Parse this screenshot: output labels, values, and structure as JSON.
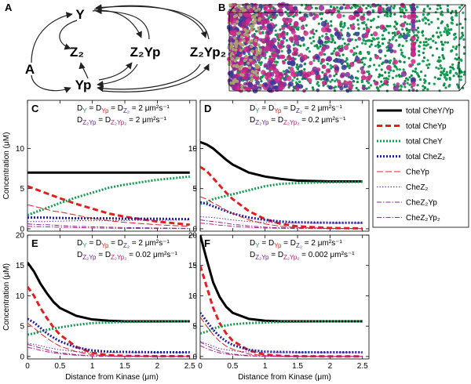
{
  "panel_labels": {
    "a": "A",
    "b": "B"
  },
  "diagram": {
    "nodes": [
      {
        "label": "Y",
        "color": "#1a9a55"
      },
      {
        "label": "Z₂",
        "color": "#2a3a9a"
      },
      {
        "label": "Z₂Yp",
        "color": "#6a2a8a"
      },
      {
        "label": "Z₂Yp₂",
        "color": "#c0207a"
      },
      {
        "label": "A",
        "color": "#b9b27a"
      },
      {
        "label": "Yp",
        "color": "#c8282d"
      }
    ]
  },
  "legend": [
    {
      "name": "total CheY/Yp",
      "color": "#000000",
      "width": 3,
      "dash": ""
    },
    {
      "name": "total CheYp",
      "color": "#e02020",
      "width": 3,
      "dash": "7 4"
    },
    {
      "name": "total CheY",
      "color": "#139a50",
      "width": 3,
      "dash": "2 2"
    },
    {
      "name": "total CheZ₂",
      "color": "#22229a",
      "width": 3,
      "dash": "2 2"
    },
    {
      "name": "CheYp",
      "color": "#e02020",
      "width": 1,
      "dash": "8 3"
    },
    {
      "name": "CheZ₂",
      "color": "#6a2a8a",
      "width": 1,
      "dash": "1.5 2"
    },
    {
      "name": "CheZ₂Yp",
      "color": "#7a2a9a",
      "width": 1,
      "dash": "6 2 1.5 2"
    },
    {
      "name": "CheZ₂Yp₂",
      "color": "#c0207a",
      "width": 1,
      "dash": "6 2 1.5 2"
    }
  ],
  "chart_data": [
    {
      "type": "line",
      "label": "C",
      "ylabel": "Concentration (μM)",
      "annotation": [
        [
          {
            "text": "D"
          },
          {
            "sub": "Y",
            "color": "#1a9a55"
          },
          {
            "text": " = D"
          },
          {
            "sub": "Yp",
            "color": "#e02020"
          },
          {
            "text": " = D"
          },
          {
            "sub": "Z₂",
            "color": "#2a3a9a"
          },
          {
            "text": " = 2 μm²s⁻¹"
          }
        ],
        [
          {
            "text": "D"
          },
          {
            "sub": "Z₂Yp",
            "color": "#6a2a8a"
          },
          {
            "text": " = D"
          },
          {
            "sub": "Z₂Yp₂",
            "color": "#c0207a"
          },
          {
            "text": " = 2 μm²s⁻¹"
          }
        ]
      ],
      "x": [
        0,
        0.1,
        0.2,
        0.3,
        0.4,
        0.5,
        0.75,
        1,
        1.25,
        1.5,
        2,
        2.5
      ],
      "xlim": [
        0,
        2.6
      ],
      "xticks": [
        0,
        0.5,
        1,
        1.5,
        2,
        2.5
      ],
      "xtick_labels": false,
      "ylim": [
        -0.3,
        16
      ],
      "yticks": [
        0,
        5,
        10
      ],
      "series": [
        {
          "values": [
            7,
            7,
            7,
            7,
            7,
            7,
            7,
            7,
            7,
            7,
            7,
            7
          ]
        },
        {
          "values": [
            5.3,
            5.0,
            4.7,
            4.4,
            4.1,
            3.8,
            3.1,
            2.5,
            1.9,
            1.5,
            0.9,
            0.5
          ]
        },
        {
          "values": [
            1.7,
            2.0,
            2.3,
            2.6,
            2.9,
            3.2,
            3.9,
            4.5,
            5.1,
            5.5,
            6.1,
            6.5
          ]
        },
        {
          "values": [
            1.4,
            1.4,
            1.4,
            1.4,
            1.35,
            1.35,
            1.3,
            1.3,
            1.3,
            1.25,
            1.25,
            1.2
          ]
        },
        {
          "values": [
            3.0,
            2.8,
            2.6,
            2.4,
            2.2,
            2.1,
            1.7,
            1.3,
            1.0,
            0.8,
            0.5,
            0.3
          ]
        },
        {
          "values": [
            0.9,
            0.9,
            0.9,
            0.9,
            0.95,
            0.95,
            1.0,
            1.0,
            1.0,
            1.05,
            1.05,
            1.1
          ]
        },
        {
          "values": [
            0.6,
            0.55,
            0.5,
            0.5,
            0.45,
            0.4,
            0.3,
            0.25,
            0.2,
            0.15,
            0.1,
            0.05
          ]
        },
        {
          "values": [
            0.3,
            0.28,
            0.26,
            0.24,
            0.22,
            0.2,
            0.15,
            0.1,
            0.08,
            0.05,
            0.03,
            0.02
          ]
        }
      ]
    },
    {
      "type": "line",
      "label": "D",
      "annotation": [
        [
          {
            "text": "D"
          },
          {
            "sub": "Y",
            "color": "#1a9a55"
          },
          {
            "text": " = D"
          },
          {
            "sub": "Yp",
            "color": "#e02020"
          },
          {
            "text": " = D"
          },
          {
            "sub": "Z₂",
            "color": "#2a3a9a"
          },
          {
            "text": " = 2 μm²s⁻¹"
          }
        ],
        [
          {
            "text": "D"
          },
          {
            "sub": "Z₂Yp",
            "color": "#6a2a8a"
          },
          {
            "text": " = D"
          },
          {
            "sub": "Z₂Yp₂",
            "color": "#c0207a"
          },
          {
            "text": " = 0.2 μm²s⁻¹"
          }
        ]
      ],
      "x": [
        0,
        0.1,
        0.2,
        0.3,
        0.4,
        0.5,
        0.75,
        1,
        1.25,
        1.5,
        2,
        2.5
      ],
      "xlim": [
        0,
        2.6
      ],
      "xticks": [
        0,
        0.5,
        1,
        1.5,
        2,
        2.5
      ],
      "xtick_labels": false,
      "ylim": [
        -0.3,
        16
      ],
      "yticks": [
        0,
        5,
        10
      ],
      "series": [
        {
          "values": [
            10.8,
            10.5,
            10.0,
            9.3,
            8.6,
            8.0,
            7.0,
            6.5,
            6.2,
            6.0,
            5.9,
            5.9
          ]
        },
        {
          "values": [
            7.7,
            7.2,
            6.3,
            5.4,
            4.5,
            3.7,
            2.2,
            1.2,
            0.6,
            0.3,
            0.1,
            0.05
          ]
        },
        {
          "values": [
            3.1,
            3.3,
            3.7,
            3.9,
            4.1,
            4.3,
            4.8,
            5.3,
            5.6,
            5.7,
            5.8,
            5.85
          ]
        },
        {
          "values": [
            3.3,
            3.1,
            2.8,
            2.5,
            2.2,
            1.9,
            1.4,
            1.1,
            0.9,
            0.8,
            0.75,
            0.75
          ]
        },
        {
          "values": [
            4.0,
            3.7,
            3.2,
            2.8,
            2.3,
            1.9,
            1.1,
            0.6,
            0.3,
            0.15,
            0.05,
            0.02
          ]
        },
        {
          "values": [
            1.5,
            1.45,
            1.4,
            1.3,
            1.2,
            1.1,
            0.9,
            0.8,
            0.75,
            0.7,
            0.7,
            0.7
          ]
        },
        {
          "values": [
            1.1,
            1.0,
            0.9,
            0.8,
            0.7,
            0.55,
            0.35,
            0.2,
            0.12,
            0.08,
            0.04,
            0.03
          ]
        },
        {
          "values": [
            0.7,
            0.65,
            0.55,
            0.45,
            0.4,
            0.3,
            0.17,
            0.1,
            0.05,
            0.03,
            0.01,
            0.01
          ]
        }
      ]
    },
    {
      "type": "line",
      "label": "E",
      "ylabel": "Concentration (μM)",
      "xlabel": "Distance from Kinase (μm)",
      "annotation": [
        [
          {
            "text": "D"
          },
          {
            "sub": "Y",
            "color": "#1a9a55"
          },
          {
            "text": " = D"
          },
          {
            "sub": "Yp",
            "color": "#e02020"
          },
          {
            "text": " = D"
          },
          {
            "sub": "Z₂",
            "color": "#2a3a9a"
          },
          {
            "text": " = 2 μm²s⁻¹"
          }
        ],
        [
          {
            "text": "D"
          },
          {
            "sub": "Z₂Yp",
            "color": "#6a2a8a"
          },
          {
            "text": " = D"
          },
          {
            "sub": "Z₂Yp₂",
            "color": "#c0207a"
          },
          {
            "text": " = 0.02 μm²s⁻¹"
          }
        ]
      ],
      "x": [
        0,
        0.1,
        0.2,
        0.3,
        0.4,
        0.5,
        0.75,
        1,
        1.25,
        1.5,
        2,
        2.5
      ],
      "xlim": [
        0,
        2.6
      ],
      "xticks": [
        0,
        0.5,
        1,
        1.5,
        2,
        2.5
      ],
      "xtick_labels": true,
      "ylim": [
        -0.4,
        20
      ],
      "yticks": [
        0,
        5,
        10,
        15,
        20
      ],
      "series": [
        {
          "values": [
            15.5,
            14.0,
            12.0,
            10.4,
            9.0,
            8.0,
            6.7,
            6.1,
            5.9,
            5.8,
            5.8,
            5.8
          ]
        },
        {
          "values": [
            11.5,
            10.0,
            8.0,
            6.3,
            4.8,
            3.6,
            1.6,
            0.6,
            0.2,
            0.1,
            0.05,
            0.05
          ]
        },
        {
          "values": [
            3.6,
            3.8,
            4.1,
            4.4,
            4.6,
            4.8,
            5.2,
            5.5,
            5.6,
            5.7,
            5.75,
            5.8
          ]
        },
        {
          "values": [
            6.2,
            5.6,
            4.7,
            3.8,
            3.1,
            2.5,
            1.5,
            1.0,
            0.8,
            0.75,
            0.7,
            0.7
          ]
        },
        {
          "values": [
            5.5,
            4.7,
            3.8,
            3.0,
            2.3,
            1.7,
            0.8,
            0.3,
            0.1,
            0.05,
            0.02,
            0.01
          ]
        },
        {
          "values": [
            2.2,
            2.0,
            1.8,
            1.5,
            1.3,
            1.1,
            0.8,
            0.7,
            0.65,
            0.65,
            0.65,
            0.65
          ]
        },
        {
          "values": [
            2.0,
            1.7,
            1.4,
            1.1,
            0.8,
            0.6,
            0.3,
            0.12,
            0.05,
            0.03,
            0.01,
            0.01
          ]
        },
        {
          "values": [
            1.5,
            1.3,
            1.0,
            0.8,
            0.6,
            0.45,
            0.2,
            0.08,
            0.03,
            0.01,
            0.01,
            0.01
          ]
        }
      ]
    },
    {
      "type": "line",
      "label": "F",
      "xlabel": "Distance from Kinase (μm)",
      "annotation": [
        [
          {
            "text": "D"
          },
          {
            "sub": "Y",
            "color": "#1a9a55"
          },
          {
            "text": " = D"
          },
          {
            "sub": "Yp",
            "color": "#e02020"
          },
          {
            "text": " = D"
          },
          {
            "sub": "Z₂",
            "color": "#2a3a9a"
          },
          {
            "text": " = 2 μm²s⁻¹"
          }
        ],
        [
          {
            "text": "D"
          },
          {
            "sub": "Z₂Yp",
            "color": "#6a2a8a"
          },
          {
            "text": " = D"
          },
          {
            "sub": "Z₂Yp₂",
            "color": "#c0207a"
          },
          {
            "text": " = 0.002 μm²s⁻¹"
          }
        ]
      ],
      "x": [
        0,
        0.1,
        0.2,
        0.3,
        0.4,
        0.5,
        0.75,
        1,
        1.25,
        1.5,
        2,
        2.5
      ],
      "xlim": [
        0,
        2.6
      ],
      "xticks": [
        0,
        0.5,
        1,
        1.5,
        2,
        2.5
      ],
      "xtick_labels": true,
      "ylim": [
        -0.4,
        20
      ],
      "yticks": [
        0,
        5,
        10,
        15,
        20
      ],
      "series": [
        {
          "values": [
            20,
            16.0,
            12.2,
            9.8,
            8.2,
            7.2,
            6.2,
            5.9,
            5.8,
            5.8,
            5.8,
            5.8
          ]
        },
        {
          "values": [
            15,
            11.5,
            8.0,
            5.5,
            3.8,
            2.6,
            1.0,
            0.3,
            0.1,
            0.05,
            0.02,
            0.02
          ]
        },
        {
          "values": [
            3.8,
            4.1,
            4.6,
            4.9,
            5.1,
            5.3,
            5.5,
            5.6,
            5.7,
            5.75,
            5.8,
            5.8
          ]
        },
        {
          "values": [
            7.2,
            5.8,
            4.4,
            3.3,
            2.5,
            1.9,
            1.1,
            0.8,
            0.75,
            0.7,
            0.7,
            0.7
          ]
        },
        {
          "values": [
            6.5,
            5.0,
            3.6,
            2.5,
            1.7,
            1.2,
            0.4,
            0.15,
            0.05,
            0.02,
            0.01,
            0.01
          ]
        },
        {
          "values": [
            2.5,
            2.1,
            1.7,
            1.3,
            1.1,
            0.95,
            0.75,
            0.68,
            0.65,
            0.65,
            0.65,
            0.65
          ]
        },
        {
          "values": [
            2.4,
            1.8,
            1.3,
            0.9,
            0.6,
            0.4,
            0.15,
            0.05,
            0.02,
            0.01,
            0.01,
            0.01
          ]
        },
        {
          "values": [
            1.8,
            1.3,
            0.9,
            0.6,
            0.4,
            0.28,
            0.1,
            0.03,
            0.01,
            0.01,
            0.01,
            0.01
          ]
        }
      ]
    }
  ]
}
